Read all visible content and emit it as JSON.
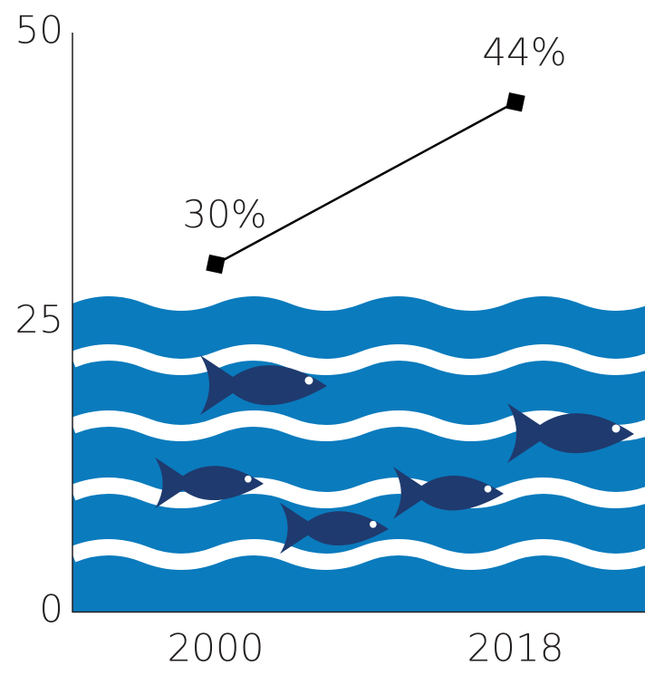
{
  "chart_data": {
    "type": "line",
    "categories": [
      "2000",
      "2018"
    ],
    "values": [
      30,
      44
    ],
    "value_labels": [
      "30%",
      "44%"
    ],
    "color": "#000000",
    "ylim": [
      0,
      50
    ],
    "yticks": [
      0,
      25,
      50
    ],
    "grid": false
  }
}
